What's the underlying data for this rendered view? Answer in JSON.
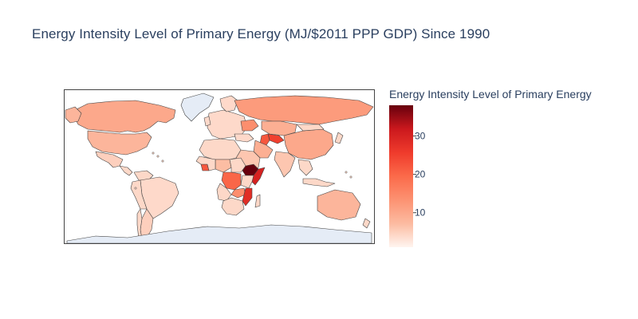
{
  "title": "Energy Intensity Level of Primary Energy (MJ/$2011 PPP GDP) Since 1990",
  "legend": {
    "title": "Energy Intensity Level of Primary Energy",
    "ticks": [
      "10",
      "20",
      "30"
    ],
    "scale_colors": [
      "#fff5f0",
      "#fcbba1",
      "#fc9272",
      "#fb6a4a",
      "#ef3b2c",
      "#cb181d",
      "#67000d"
    ]
  },
  "colors": {
    "land_default": "#fdd8c8",
    "land_no_data": "#e5ecf6",
    "border": "#444444",
    "frame": "#444444",
    "ocean": "#ffffff"
  },
  "chart_data": {
    "type": "choropleth",
    "title": "Energy Intensity Level of Primary Energy (MJ/$2011 PPP GDP) Since 1990",
    "colorbar_title": "Energy Intensity Level of Primary Energy",
    "colorscale": "Reds",
    "zrange": [
      1,
      38
    ],
    "colorbar_ticks": [
      10,
      20,
      30
    ],
    "regions": [
      {
        "name": "Canada",
        "value": 10
      },
      {
        "name": "United States",
        "value": 8
      },
      {
        "name": "Mexico",
        "value": 5
      },
      {
        "name": "Brazil",
        "value": 4
      },
      {
        "name": "Argentina",
        "value": 5
      },
      {
        "name": "Russia",
        "value": 12
      },
      {
        "name": "China",
        "value": 10
      },
      {
        "name": "India",
        "value": 6
      },
      {
        "name": "Australia",
        "value": 8
      },
      {
        "name": "Uzbekistan",
        "value": 25
      },
      {
        "name": "Turkmenistan",
        "value": 22
      },
      {
        "name": "Ukraine",
        "value": 14
      },
      {
        "name": "Ethiopia",
        "value": 38
      },
      {
        "name": "Somalia",
        "value": 30
      },
      {
        "name": "DR Congo",
        "value": 20
      },
      {
        "name": "Mozambique",
        "value": 28
      },
      {
        "name": "Zambia",
        "value": 14
      },
      {
        "name": "Nigeria",
        "value": 7
      },
      {
        "name": "Liberia",
        "value": 22
      },
      {
        "name": "Iran",
        "value": 9
      },
      {
        "name": "Saudi Arabia",
        "value": 6
      },
      {
        "name": "Kazakhstan",
        "value": 9
      },
      {
        "name": "Europe",
        "value": 4
      }
    ]
  }
}
